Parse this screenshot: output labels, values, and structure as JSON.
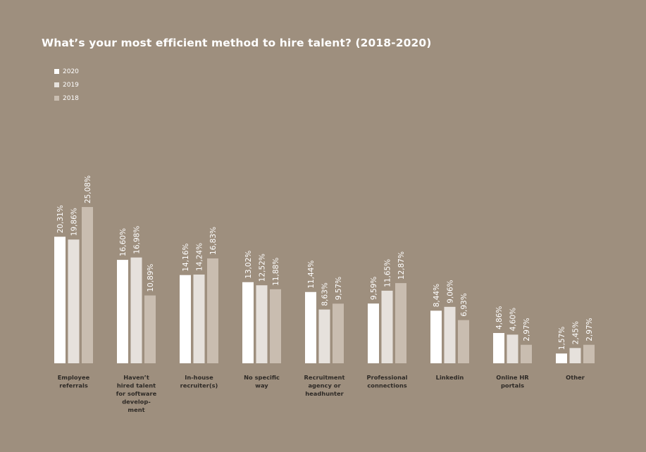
{
  "title": "What’s your most efficient method to hire talent? (2018-2020)",
  "colors": {
    "background": "#9e8f7e",
    "2020": "#ffffff",
    "2019": "#e6e1dc",
    "2018": "#c9bdb0"
  },
  "legend": [
    {
      "name": "2020",
      "color": "#ffffff"
    },
    {
      "name": "2019",
      "color": "#e6e1dc"
    },
    {
      "name": "2018",
      "color": "#c9bdb0"
    }
  ],
  "chart_data": {
    "type": "bar",
    "title": "What’s your most efficient method to hire talent? (2018-2020)",
    "legend_position": "top-left",
    "grid": false,
    "ylim": [
      0,
      27
    ],
    "categories": [
      [
        "Employee",
        "referrals"
      ],
      [
        "Haven’t",
        "hired talent",
        "for software",
        "develop-",
        "ment"
      ],
      [
        "In-house",
        "recruiter(s)"
      ],
      [
        "No specific",
        "way"
      ],
      [
        "Recruitment",
        "agency or",
        "headhunter"
      ],
      [
        "Professional",
        "connections"
      ],
      [
        "Linkedin"
      ],
      [
        "Online HR",
        "portals"
      ],
      [
        "Other"
      ]
    ],
    "series": [
      {
        "name": "2020",
        "color": "#ffffff",
        "values": [
          20.31,
          16.6,
          14.16,
          13.02,
          11.44,
          9.59,
          8.44,
          4.86,
          1.57
        ],
        "labels": [
          "20,31%",
          "16,60%",
          "14,16%",
          "13,02%",
          "11,44%",
          "9,59%",
          "8,44%",
          "4,86%",
          "1,57%"
        ]
      },
      {
        "name": "2019",
        "color": "#e6e1dc",
        "values": [
          19.86,
          16.98,
          14.24,
          12.52,
          8.63,
          11.65,
          9.06,
          4.6,
          2.45
        ],
        "labels": [
          "19,86%",
          "16,98%",
          "14,24%",
          "12,52%",
          "8,63%",
          "11,65%",
          "9,06%",
          "4,60%",
          "2,45%"
        ]
      },
      {
        "name": "2018",
        "color": "#c9bdb0",
        "values": [
          25.08,
          10.89,
          16.83,
          11.88,
          9.57,
          12.87,
          6.93,
          2.97,
          2.97
        ],
        "labels": [
          "25,08%",
          "10,89%",
          "16,83%",
          "11,88%",
          "9,57%",
          "12,87%",
          "6,93%",
          "2,97%",
          "2,97%"
        ]
      }
    ]
  }
}
